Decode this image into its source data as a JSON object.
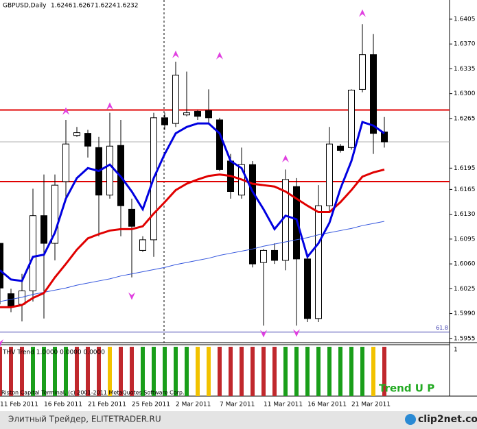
{
  "chart_data": {
    "type": "candlestick",
    "title": "GBPUSD,Daily",
    "categories": [
      null,
      "11 Feb 2011",
      null,
      null,
      null,
      "16 Feb 2011",
      null,
      null,
      null,
      "21 Feb 2011",
      null,
      null,
      null,
      "25 Feb 2011",
      null,
      null,
      null,
      "2 Mar 2011",
      null,
      null,
      null,
      "7 Mar 2011",
      null,
      null,
      null,
      "11 Mar 2011",
      null,
      null,
      null,
      "16 Mar 2011",
      null,
      null,
      null,
      "21 Mar 2011",
      null,
      null
    ],
    "open": [
      1.6089,
      1.6018,
      1.6003,
      1.6022,
      1.6128,
      1.6089,
      1.6176,
      1.6241,
      1.6244,
      1.6224,
      1.6157,
      1.6227,
      1.6137,
      1.6079,
      1.6094,
      1.6266,
      1.6258,
      1.627,
      1.6275,
      1.6276,
      1.6263,
      1.6205,
      1.6157,
      1.62,
      1.6062,
      1.6079,
      1.6065,
      1.6169,
      1.6067,
      1.5983,
      1.6142,
      1.6226,
      1.6224,
      1.6306,
      1.6355,
      1.6246
    ],
    "high": [
      1.6089,
      1.6025,
      1.6046,
      1.6166,
      1.6186,
      1.6186,
      1.6263,
      1.6253,
      1.6249,
      1.6239,
      1.6273,
      1.6263,
      1.6152,
      1.6099,
      1.6273,
      1.6273,
      1.6345,
      1.6331,
      1.6277,
      1.6306,
      1.6266,
      1.6215,
      1.6224,
      1.6205,
      1.6081,
      1.6089,
      1.6193,
      1.6181,
      1.6075,
      1.6171,
      1.6253,
      1.6229,
      1.6306,
      1.6398,
      1.6384,
      1.6267
    ],
    "low": [
      1.6003,
      1.5992,
      1.5979,
      1.6007,
      1.5983,
      1.6065,
      1.6152,
      1.6239,
      1.621,
      1.6099,
      1.6152,
      1.6099,
      1.6041,
      1.6077,
      1.607,
      1.6249,
      1.6253,
      1.6268,
      1.6263,
      1.6258,
      1.6191,
      1.6152,
      1.6152,
      1.6055,
      1.5973,
      1.606,
      1.6051,
      1.5973,
      1.5978,
      1.5978,
      1.6133,
      1.6217,
      1.6221,
      1.6302,
      1.6215,
      1.6224
    ],
    "close": [
      1.6026,
      1.6,
      1.6022,
      1.6128,
      1.6089,
      1.6171,
      1.6229,
      1.6245,
      1.6226,
      1.6157,
      1.6226,
      1.6142,
      1.6113,
      1.6094,
      1.6266,
      1.6256,
      1.6326,
      1.6273,
      1.6268,
      1.6266,
      1.6193,
      1.6162,
      1.62,
      1.606,
      1.6079,
      1.6065,
      1.6179,
      1.6067,
      1.5983,
      1.6142,
      1.6229,
      1.622,
      1.6305,
      1.6355,
      1.6244,
      1.6232
    ],
    "lines": [
      {
        "color": "#3355dd",
        "width": 1,
        "values": [
          1.6007,
          1.601,
          1.6013,
          1.6017,
          1.602,
          1.6023,
          1.6026,
          1.603,
          1.6033,
          1.6036,
          1.6039,
          1.6043,
          1.6046,
          1.6049,
          1.6052,
          1.6055,
          1.6059,
          1.6062,
          1.6065,
          1.6068,
          1.6072,
          1.6075,
          1.6078,
          1.6081,
          1.6085,
          1.6088,
          1.6091,
          1.6094,
          1.6097,
          1.6101,
          1.6104,
          1.6107,
          1.611,
          1.6114,
          1.6117,
          1.612
        ]
      },
      {
        "color": "#e00000",
        "width": 3,
        "values": [
          1.5999,
          1.5999,
          1.6002,
          1.6012,
          1.6019,
          1.6041,
          1.606,
          1.608,
          1.6096,
          1.6102,
          1.6107,
          1.6109,
          1.6109,
          1.6113,
          1.6131,
          1.6147,
          1.6164,
          1.6173,
          1.6179,
          1.6184,
          1.6186,
          1.6184,
          1.6179,
          1.6173,
          1.6171,
          1.6169,
          1.6162,
          1.6152,
          1.6142,
          1.6133,
          1.6133,
          1.6147,
          1.6164,
          1.6183,
          1.6189,
          1.6193
        ]
      },
      {
        "color": "#0000e0",
        "width": 3,
        "values": [
          1.6051,
          1.6038,
          1.6036,
          1.607,
          1.6073,
          1.6104,
          1.6152,
          1.6181,
          1.6195,
          1.6191,
          1.62,
          1.6183,
          1.6162,
          1.6137,
          1.6181,
          1.6215,
          1.6244,
          1.6253,
          1.6258,
          1.6258,
          1.6244,
          1.6205,
          1.6195,
          1.6162,
          1.6137,
          1.6109,
          1.6128,
          1.6123,
          1.607,
          1.6089,
          1.6118,
          1.6166,
          1.6205,
          1.626,
          1.6255,
          1.6244
        ]
      }
    ],
    "fractal_up": [
      null,
      null,
      null,
      null,
      null,
      null,
      1.6275,
      null,
      null,
      null,
      1.6282,
      null,
      null,
      null,
      null,
      null,
      1.6355,
      null,
      null,
      null,
      1.6353,
      null,
      null,
      null,
      null,
      null,
      1.6208,
      null,
      null,
      null,
      null,
      null,
      null,
      1.6413,
      null,
      null
    ],
    "fractal_down": [
      1.5949,
      null,
      null,
      null,
      null,
      null,
      null,
      null,
      null,
      null,
      null,
      null,
      1.6015,
      null,
      null,
      null,
      null,
      null,
      null,
      null,
      null,
      null,
      null,
      null,
      1.5962,
      null,
      null,
      1.5963,
      null,
      null,
      null,
      null,
      null,
      null,
      null,
      null
    ],
    "marker_color": "#e040e0",
    "levels": [
      {
        "value": 1.6277,
        "color": "#e00000"
      },
      {
        "value": 1.6176,
        "color": "#e00000"
      }
    ],
    "fib_level": {
      "value": 1.5964,
      "label": "61.8",
      "color": "#3333aa"
    },
    "ylim": [
      1.5949,
      1.6432
    ],
    "yticks": [
      1.6405,
      {
        "value": 1.637,
        "label": "1.6370"
      },
      1.6335,
      {
        "value": 1.63,
        "label": "1.6300"
      },
      1.6265,
      1.6195,
      1.6165,
      {
        "value": 1.613,
        "label": "1.6130"
      },
      1.6095,
      {
        "value": 1.606,
        "label": "1.6060"
      },
      1.6025,
      {
        "value": 1.599,
        "label": "1.5990"
      },
      1.5955
    ],
    "indicator": {
      "title": "THV Trend 1.0000 0.0000 0.0000",
      "values": [
        1,
        1,
        1,
        1,
        1,
        1,
        1,
        1,
        1,
        1,
        1,
        1,
        1,
        1,
        1,
        1,
        1,
        1,
        1,
        1,
        1,
        1,
        1,
        1,
        1,
        1,
        1,
        1,
        1,
        1,
        1,
        1,
        1,
        1,
        1,
        1
      ],
      "colors": [
        "#c0282d",
        "#c0282d",
        "#c0282d",
        "#1a9e1a",
        "#1a9e1a",
        "#1a9e1a",
        "#1a9e1a",
        "#c0282d",
        "#c0282d",
        "#c0282d",
        "#f2c200",
        "#c0282d",
        "#c0282d",
        "#1a9e1a",
        "#1a9e1a",
        "#1a9e1a",
        "#1a9e1a",
        "#1a9e1a",
        "#f2c200",
        "#f2c200",
        "#c0282d",
        "#c0282d",
        "#c0282d",
        "#c0282d",
        "#c0282d",
        "#c0282d",
        "#1a9e1a",
        "#1a9e1a",
        "#1a9e1a",
        "#1a9e1a",
        "#1a9e1a",
        "#1a9e1a",
        "#1a9e1a",
        "#1a9e1a",
        "#f2c200",
        "#c0282d"
      ],
      "ylim": [
        0,
        1
      ],
      "yticks": [
        1
      ],
      "signal": "Trend U P"
    },
    "copyright": "Riston Capital Terminal, (c) 2001-2011 MetaQuotes Software Corp."
  },
  "footer": {
    "site": "Элитный Трейдер, ELITETRADER.RU",
    "logo": "clip2net.com"
  }
}
